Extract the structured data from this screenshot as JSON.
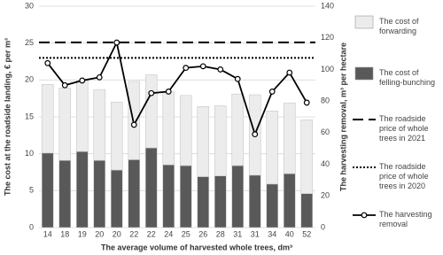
{
  "chart_data": {
    "type": "bar",
    "xlabel": "The average volume of harvested whole trees, dm³",
    "ylabel": "The cost at the roadside landing, € per m³",
    "y2label": "The harvesting removal, m³ per hectare",
    "categories": [
      "14",
      "18",
      "19",
      "20",
      "20",
      "22",
      "22",
      "24",
      "25",
      "26",
      "28",
      "31",
      "31",
      "34",
      "40",
      "52"
    ],
    "ylim": [
      0,
      30
    ],
    "yticks": [
      0,
      5,
      10,
      15,
      20,
      25,
      30
    ],
    "y2lim": [
      0,
      140
    ],
    "y2ticks": [
      0,
      20,
      40,
      60,
      80,
      100,
      120,
      140
    ],
    "grid": true,
    "series": [
      {
        "name": "The cost of forwarding",
        "type": "bar",
        "color": "#ececec",
        "values": [
          9.3,
          9.8,
          9.6,
          9.6,
          9.2,
          10.6,
          9.9,
          9.9,
          9.5,
          9.5,
          9.5,
          9.7,
          10.9,
          9.9,
          9.6,
          10.0
        ]
      },
      {
        "name": "The cost of felling-bunching",
        "type": "bar",
        "color": "#595959",
        "values": [
          10.1,
          9.1,
          10.3,
          9.1,
          7.8,
          9.2,
          10.8,
          8.5,
          8.4,
          6.9,
          7.0,
          8.4,
          7.1,
          5.9,
          7.3,
          4.6
        ]
      },
      {
        "name": "The roadside price of whole trees in 2021",
        "type": "hline",
        "dash": "12 6",
        "color": "#000000",
        "value": 25.1
      },
      {
        "name": "The roadside price of whole trees in 2020",
        "type": "hline",
        "dash": "2 2",
        "color": "#000000",
        "value": 23.0
      },
      {
        "name": "The harvesting removal",
        "type": "line",
        "axis": "y2",
        "color": "#000000",
        "values": [
          104,
          90,
          93,
          95,
          117,
          65,
          85,
          86,
          101,
          102,
          100,
          94,
          59,
          86,
          98,
          79
        ]
      }
    ]
  }
}
